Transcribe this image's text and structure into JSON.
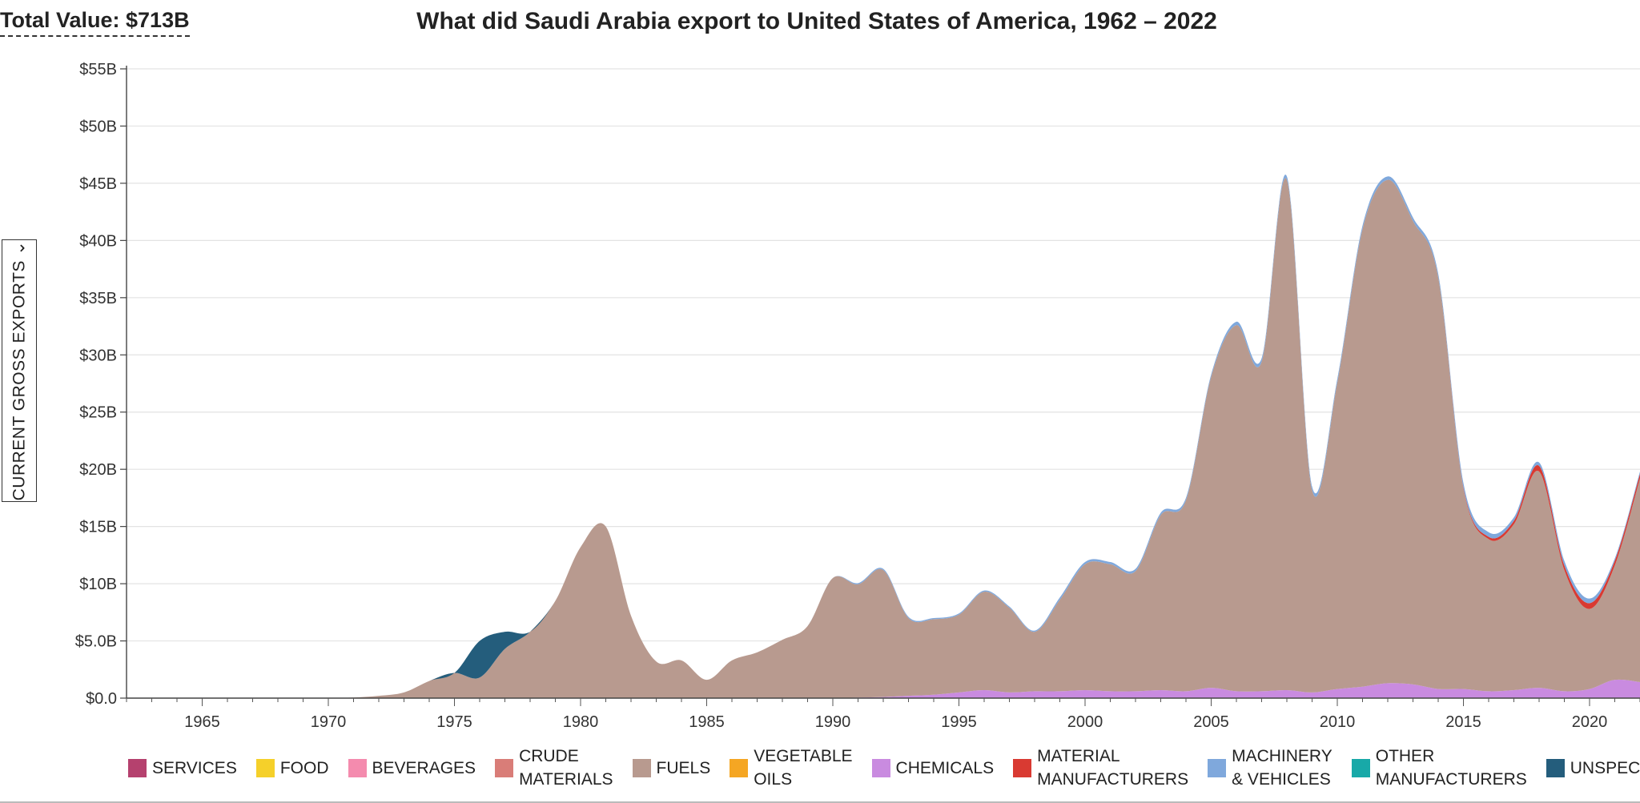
{
  "header": {
    "total_value": "Total Value: $713B",
    "title": "What did Saudi Arabia export to United States of America, 1962 – 2022"
  },
  "y_toggle": {
    "label": "CURRENT GROSS EXPORTS ⌄"
  },
  "legend": [
    {
      "label": "SERVICES",
      "color": "#b5416e"
    },
    {
      "label": "FOOD",
      "color": "#f5d02a"
    },
    {
      "label": "BEVERAGES",
      "color": "#f48bae"
    },
    {
      "label": "CRUDE\nMATERIALS",
      "color": "#d97d78"
    },
    {
      "label": "FUELS",
      "color": "#b89a8f"
    },
    {
      "label": "VEGETABLE\nOILS",
      "color": "#f5a623"
    },
    {
      "label": "CHEMICALS",
      "color": "#c98be0"
    },
    {
      "label": "MATERIAL\nMANUFACTURERS",
      "color": "#d93a32"
    },
    {
      "label": "MACHINERY\n& VEHICLES",
      "color": "#7fa8dc"
    },
    {
      "label": "OTHER\nMANUFACTURERS",
      "color": "#18a9a8"
    },
    {
      "label": "UNSPECIFIED",
      "color": "#245d7c"
    }
  ],
  "chart_data": {
    "type": "area",
    "stacked": true,
    "title": "What did Saudi Arabia export to United States of America, 1962 – 2022",
    "xlabel": "",
    "ylabel": "CURRENT GROSS EXPORTS",
    "xlim": [
      1962,
      2022
    ],
    "ylim": [
      0,
      55
    ],
    "y_unit": "billions USD",
    "x_ticks": [
      1965,
      1970,
      1975,
      1980,
      1985,
      1990,
      1995,
      2000,
      2005,
      2010,
      2015,
      2020
    ],
    "y_ticks": [
      0,
      5,
      10,
      15,
      20,
      25,
      30,
      35,
      40,
      45,
      50,
      55
    ],
    "y_tick_labels": [
      "$0.0",
      "$5.0B",
      "$10B",
      "$15B",
      "$20B",
      "$25B",
      "$30B",
      "$35B",
      "$40B",
      "$45B",
      "$50B",
      "$55B"
    ],
    "grid": true,
    "years": [
      1962,
      1963,
      1964,
      1965,
      1966,
      1967,
      1968,
      1969,
      1970,
      1971,
      1972,
      1973,
      1974,
      1975,
      1976,
      1977,
      1978,
      1979,
      1980,
      1981,
      1982,
      1983,
      1984,
      1985,
      1986,
      1987,
      1988,
      1989,
      1990,
      1991,
      1992,
      1993,
      1994,
      1995,
      1996,
      1997,
      1998,
      1999,
      2000,
      2001,
      2002,
      2003,
      2004,
      2005,
      2006,
      2007,
      2008,
      2009,
      2010,
      2011,
      2012,
      2013,
      2014,
      2015,
      2016,
      2017,
      2018,
      2019,
      2020,
      2021,
      2022
    ],
    "series": [
      {
        "name": "CHEMICALS",
        "color": "#c98be0",
        "values": [
          0,
          0,
          0,
          0,
          0,
          0,
          0,
          0,
          0,
          0,
          0,
          0,
          0,
          0,
          0,
          0,
          0,
          0,
          0,
          0,
          0,
          0,
          0,
          0,
          0,
          0,
          0,
          0,
          0,
          0.05,
          0.1,
          0.2,
          0.3,
          0.5,
          0.7,
          0.5,
          0.6,
          0.6,
          0.7,
          0.6,
          0.6,
          0.7,
          0.6,
          0.9,
          0.6,
          0.6,
          0.7,
          0.5,
          0.8,
          1.0,
          1.3,
          1.2,
          0.8,
          0.8,
          0.6,
          0.7,
          0.9,
          0.6,
          0.8,
          1.6,
          1.4
        ]
      },
      {
        "name": "FUELS",
        "color": "#b89a8f",
        "values": [
          0,
          0,
          0,
          0,
          0,
          0,
          0,
          0,
          0,
          0.05,
          0.2,
          0.5,
          1.5,
          2.2,
          1.8,
          4.3,
          5.8,
          8.5,
          13.2,
          15.0,
          7.2,
          3.2,
          3.3,
          1.6,
          3.3,
          4.0,
          5.1,
          6.3,
          10.5,
          9.9,
          11.1,
          6.8,
          6.6,
          6.8,
          8.6,
          7.4,
          5.2,
          8.0,
          11.0,
          11.1,
          10.5,
          15.3,
          16.7,
          27.2,
          32.0,
          28.8,
          44.6,
          17.7,
          26.8,
          40.0,
          44.0,
          40.5,
          36.0,
          17.5,
          13.3,
          14.5,
          18.9,
          10.6,
          7.0,
          10.0,
          17.8
        ]
      },
      {
        "name": "MATERIAL MANUFACTURERS",
        "color": "#d93a32",
        "values": [
          0,
          0,
          0,
          0,
          0,
          0,
          0,
          0,
          0,
          0,
          0,
          0,
          0,
          0,
          0,
          0,
          0,
          0,
          0,
          0,
          0,
          0,
          0,
          0,
          0,
          0,
          0,
          0,
          0,
          0,
          0,
          0,
          0,
          0,
          0,
          0,
          0,
          0,
          0,
          0,
          0,
          0,
          0,
          0,
          0,
          0,
          0,
          0,
          0,
          0,
          0,
          0,
          0,
          0.1,
          0.2,
          0.3,
          0.5,
          0.4,
          0.5,
          0.4,
          0.4
        ]
      },
      {
        "name": "MACHINERY & VEHICLES",
        "color": "#7fa8dc",
        "values": [
          0,
          0,
          0,
          0,
          0,
          0,
          0,
          0,
          0,
          0,
          0,
          0,
          0,
          0,
          0,
          0,
          0,
          0,
          0,
          0,
          0,
          0,
          0,
          0,
          0,
          0,
          0,
          0,
          0,
          0.1,
          0.1,
          0.1,
          0.1,
          0.1,
          0.1,
          0.1,
          0.1,
          0.2,
          0.2,
          0.2,
          0.2,
          0.2,
          0.2,
          0.2,
          0.3,
          0.3,
          0.3,
          0.3,
          0.3,
          0.3,
          0.3,
          0.3,
          0.3,
          0.4,
          0.4,
          0.3,
          0.3,
          0.4,
          0.4,
          0.2,
          0.2
        ]
      },
      {
        "name": "UNSPECIFIED",
        "color": "#245d7c",
        "values": [
          0,
          0,
          0,
          0,
          0,
          0,
          0,
          0,
          0,
          0,
          0,
          0,
          0,
          0,
          3.2,
          1.5,
          0,
          0,
          0,
          0,
          0,
          0,
          0,
          0,
          0,
          0,
          0,
          0,
          0,
          0,
          0,
          0,
          0,
          0,
          0,
          0,
          0,
          0,
          0,
          0,
          0,
          0,
          0,
          0,
          0,
          0,
          0,
          0,
          0,
          0,
          0,
          0,
          0,
          0,
          0,
          0,
          0,
          0,
          0,
          0,
          0
        ]
      }
    ]
  }
}
